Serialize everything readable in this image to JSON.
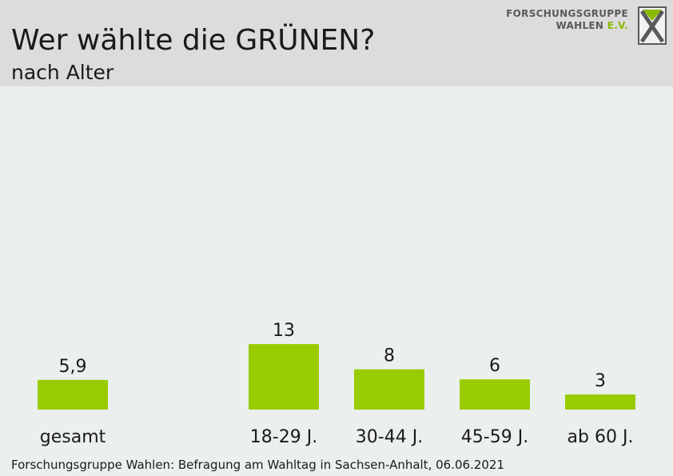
{
  "header": {
    "title": "Wer wählte die GRÜNEN?",
    "subtitle": "nach Alter"
  },
  "logo": {
    "line1": "FORSCHUNGSGRUPPE",
    "line2_a": "WAHLEN ",
    "line2_b": "E.V."
  },
  "footer": {
    "source": "Forschungsgruppe Wahlen: Befragung am Wahltag in Sachsen-Anhalt, 06.06.2021"
  },
  "colors": {
    "bar": "#99cc00",
    "header_bg": "#dcdcdc",
    "plot_bg": "#ebefee"
  },
  "chart_data": {
    "type": "bar",
    "title": "Wer wählte die GRÜNEN?",
    "subtitle": "nach Alter",
    "categories": [
      "gesamt",
      "18-29 J.",
      "30-44 J.",
      "45-59 J.",
      "ab 60 J."
    ],
    "values": [
      5.9,
      13,
      8,
      6,
      3
    ],
    "value_labels": [
      "5,9",
      "13",
      "8",
      "6",
      "3"
    ],
    "xlabel": "",
    "ylabel": "",
    "grid": false,
    "legend": "none"
  }
}
